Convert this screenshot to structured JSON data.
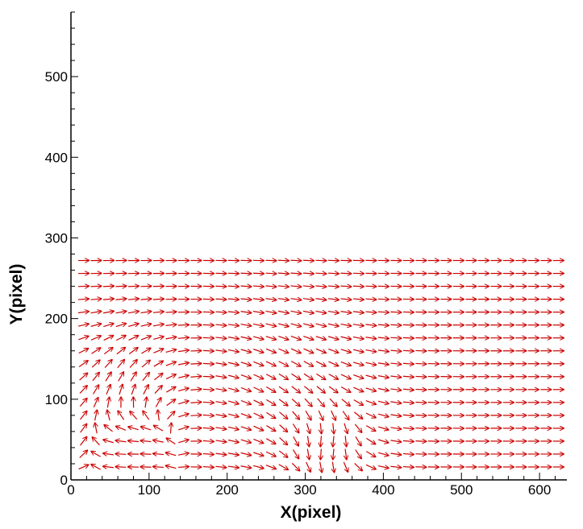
{
  "chart_data": {
    "type": "quiver",
    "xlabel": "X(pixel)",
    "ylabel": "Y(pixel)",
    "xlim": [
      0,
      635
    ],
    "ylim": [
      0,
      580
    ],
    "xticks": [
      0,
      100,
      200,
      300,
      400,
      500,
      600
    ],
    "yticks": [
      0,
      100,
      200,
      300,
      400,
      500
    ],
    "x_minor_step": 20,
    "y_minor_step": 20,
    "grid": false,
    "arrow_color": "#cc0000",
    "field": {
      "x_start": 16,
      "x_end": 632,
      "x_step": 16,
      "y_start": 16,
      "y_end": 287,
      "y_step": 16,
      "uniform_vector": [
        1,
        0
      ],
      "disturbances": [
        {
          "center": [
            290,
            105
          ],
          "spread": 75,
          "vector": [
            0.7,
            -0.6
          ],
          "weight": 0.8
        },
        {
          "center": [
            60,
            110
          ],
          "spread": 55,
          "vector": [
            0.5,
            0.9
          ],
          "weight": 0.9
        },
        {
          "center": [
            330,
            40
          ],
          "spread": 40,
          "vector": [
            -0.5,
            -0.8
          ],
          "weight": 0.7
        },
        {
          "center": [
            80,
            30
          ],
          "spread": 50,
          "vector": [
            -1,
            0
          ],
          "weight": 0.9
        }
      ]
    }
  }
}
